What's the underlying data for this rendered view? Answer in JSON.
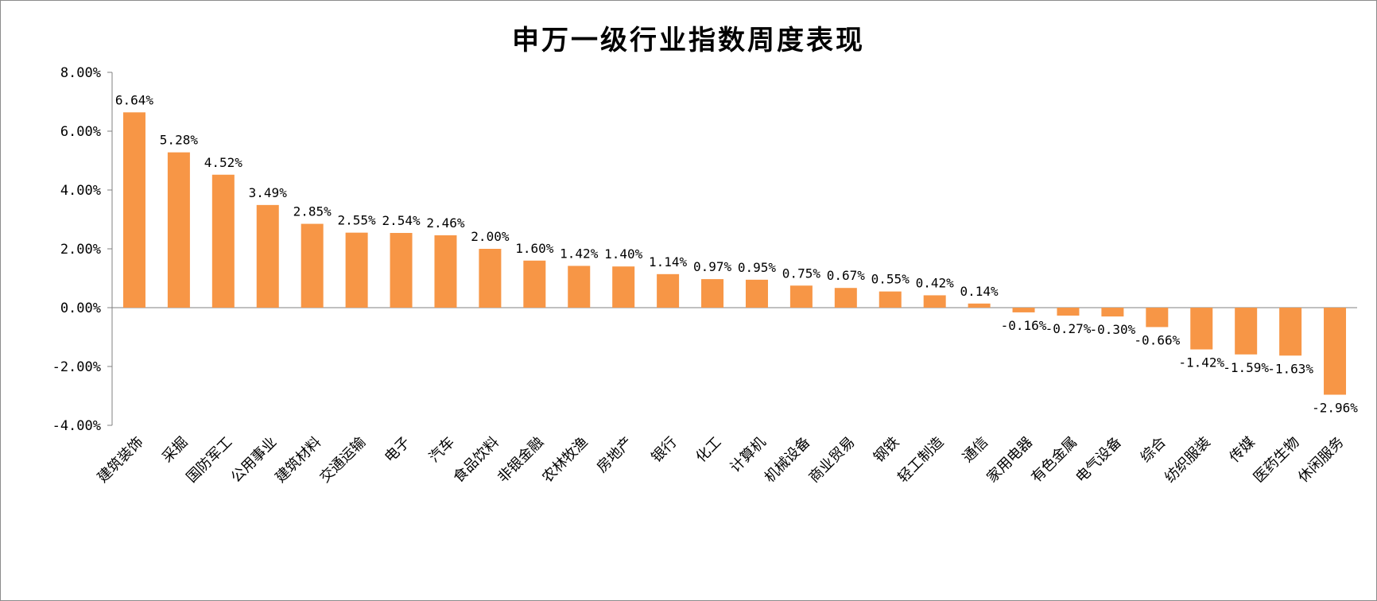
{
  "chart_data": {
    "type": "bar",
    "title": "申万一级行业指数周度表现",
    "categories": [
      "建筑装饰",
      "采掘",
      "国防军工",
      "公用事业",
      "建筑材料",
      "交通运输",
      "电子",
      "汽车",
      "食品饮料",
      "非银金融",
      "农林牧渔",
      "房地产",
      "银行",
      "化工",
      "计算机",
      "机械设备",
      "商业贸易",
      "钢铁",
      "轻工制造",
      "通信",
      "家用电器",
      "有色金属",
      "电气设备",
      "综合",
      "纺织服装",
      "传媒",
      "医药生物",
      "休闲服务"
    ],
    "values": [
      6.64,
      5.28,
      4.52,
      3.49,
      2.85,
      2.55,
      2.54,
      2.46,
      2.0,
      1.6,
      1.42,
      1.4,
      1.14,
      0.97,
      0.95,
      0.75,
      0.67,
      0.55,
      0.42,
      0.14,
      -0.16,
      -0.27,
      -0.3,
      -0.66,
      -1.42,
      -1.59,
      -1.63,
      -2.96
    ],
    "data_labels": [
      "6.64%",
      "5.28%",
      "4.52%",
      "3.49%",
      "2.85%",
      "2.55%",
      "2.54%",
      "2.46%",
      "2.00%",
      "1.60%",
      "1.42%",
      "1.40%",
      "1.14%",
      "0.97%",
      "0.95%",
      "0.75%",
      "0.67%",
      "0.55%",
      "0.42%",
      "0.14%",
      "-0.16%",
      "-0.27%",
      "-0.30%",
      "-0.66%",
      "-1.42%",
      "-1.59%",
      "-1.63%",
      "-2.96%"
    ],
    "ylim": [
      -4,
      8
    ],
    "yticks": [
      8,
      6,
      4,
      2,
      0,
      -2,
      -4
    ],
    "ytick_labels": [
      "8.00%",
      "6.00%",
      "4.00%",
      "2.00%",
      "0.00%",
      "-2.00%",
      "-4.00%"
    ],
    "xlabel": "",
    "ylabel": "",
    "bar_color": "#F79646",
    "axis_color": "#808080",
    "grid": false,
    "legend": "none"
  }
}
